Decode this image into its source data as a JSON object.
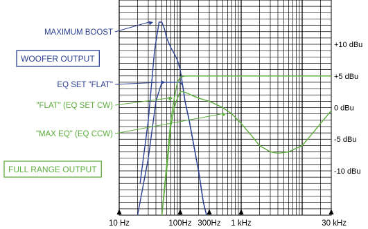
{
  "colors": {
    "blue": "#2b3f93",
    "green": "#5cad3c",
    "grid": "#000000",
    "background": "#ffffff"
  },
  "chart_data": {
    "type": "line",
    "xscale": "log",
    "xlim": [
      10,
      30000
    ],
    "ylim": [
      -17,
      17
    ],
    "grid": true,
    "x_ticks": [
      {
        "value": 10,
        "label": "10 Hz"
      },
      {
        "value": 100,
        "label": "100Hz"
      },
      {
        "value": 300,
        "label": "300Hz"
      },
      {
        "value": 1000,
        "label": "1 kHz"
      },
      {
        "value": 30000,
        "label": "30 kHz"
      }
    ],
    "y_ticks": [
      {
        "value": 10,
        "label": "+10 dBu"
      },
      {
        "value": 5,
        "label": "+5 dBu"
      },
      {
        "value": 0,
        "label": "0 dBu"
      },
      {
        "value": -5,
        "label": "-5 dBu"
      },
      {
        "value": -10,
        "label": "-10 dBu"
      }
    ],
    "groups": [
      {
        "label": "WOOFER OUTPUT",
        "color": "blue",
        "boxed": true
      },
      {
        "label": "FULL RANGE OUTPUT",
        "color": "green",
        "boxed": true
      }
    ],
    "series": [
      {
        "name": "MAXIMUM BOOST",
        "color": "blue",
        "x": [
          22,
          30,
          38,
          45,
          50,
          55,
          60,
          70,
          80,
          90,
          100,
          110,
          120,
          140,
          160,
          200,
          240,
          270
        ],
        "y": [
          -12,
          -2,
          9,
          13.5,
          13.5,
          12.5,
          11,
          9.5,
          8.5,
          7.5,
          6,
          3.5,
          1,
          -2,
          -5,
          -10,
          -15,
          -17
        ]
      },
      {
        "name": "EQ SET \"FLAT\"",
        "color": "blue",
        "x": [
          20,
          30,
          40,
          50,
          60,
          70,
          80,
          90,
          100,
          110,
          120,
          140,
          160,
          200,
          240,
          270
        ],
        "y": [
          -17,
          -8,
          1,
          4,
          4,
          4,
          4,
          4,
          4,
          3.5,
          1,
          -2,
          -5,
          -10,
          -15,
          -17
        ]
      },
      {
        "name": "\"FLAT\" (EQ SET CW)",
        "color": "green",
        "x": [
          50,
          60,
          70,
          80,
          90,
          100,
          120,
          150,
          200,
          300,
          1000,
          3000,
          10000,
          30000
        ],
        "y": [
          -17,
          -9,
          -2,
          1.5,
          4,
          4.8,
          5,
          5,
          5,
          5,
          5,
          5,
          5,
          5
        ]
      },
      {
        "name": "\"MAX EQ\" (EQ CCW)",
        "color": "green",
        "x": [
          50,
          60,
          70,
          80,
          90,
          100,
          110,
          130,
          150,
          200,
          300,
          500,
          700,
          1000,
          1500,
          2000,
          3000,
          4000,
          6000,
          10000,
          15000,
          20000,
          30000
        ],
        "y": [
          -17,
          -10,
          -3,
          0,
          1.5,
          2.5,
          2.5,
          2.3,
          2,
          1.5,
          1,
          0,
          -1,
          -2.5,
          -4.5,
          -6,
          -7,
          -7.2,
          -7,
          -6,
          -4,
          -2.5,
          -0.5
        ]
      }
    ]
  }
}
